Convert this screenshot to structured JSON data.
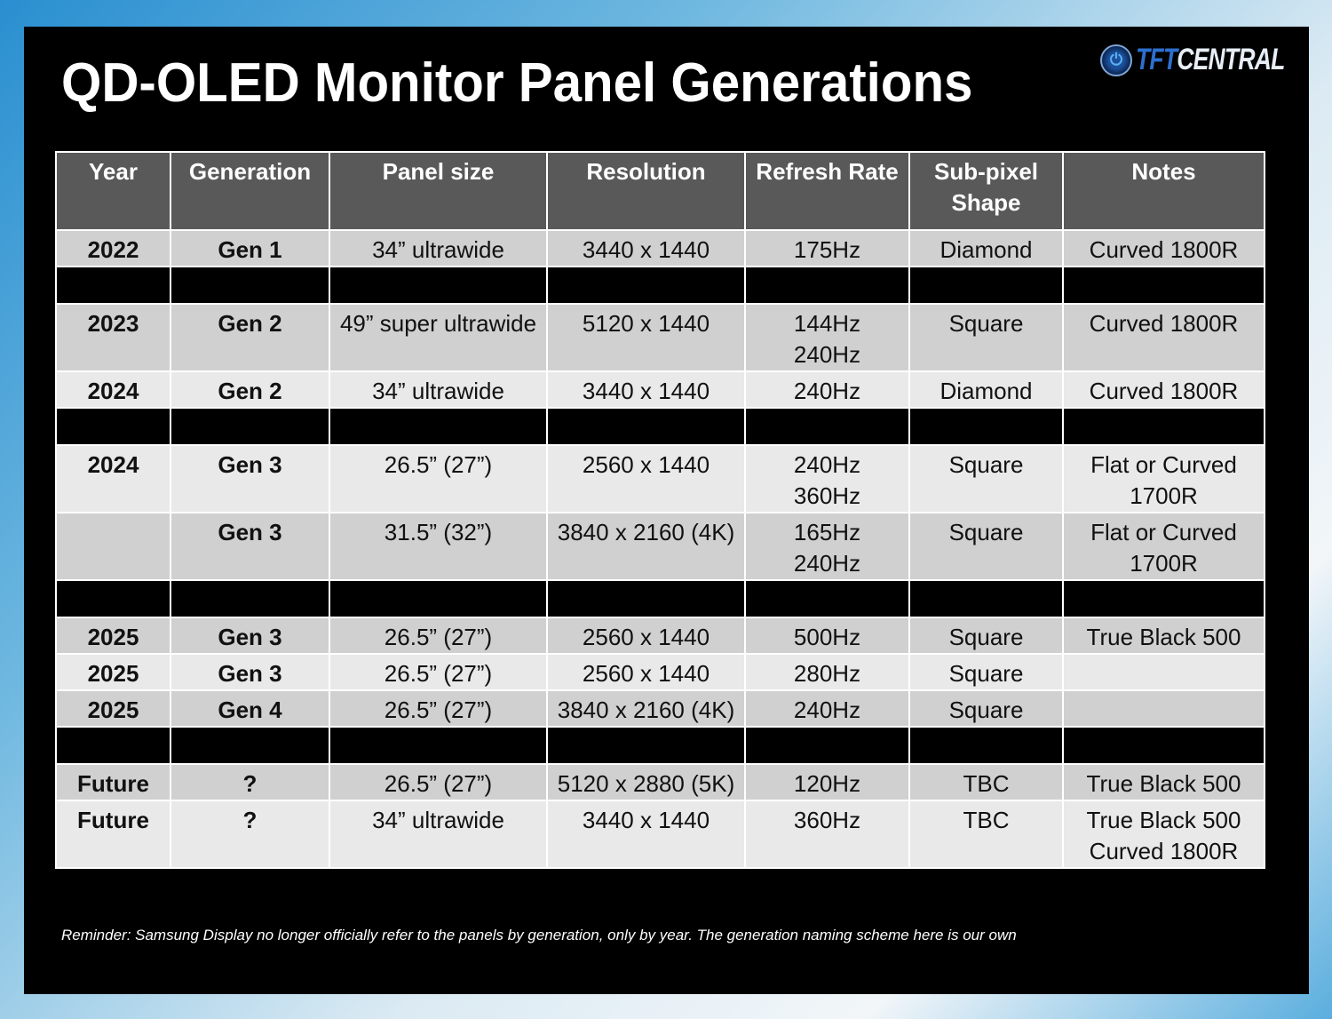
{
  "title": "QD-OLED Monitor Panel Generations",
  "logo": {
    "text_part1": "TFT",
    "text_part2": "CENTRAL",
    "icon": "power-icon"
  },
  "table": {
    "headers": [
      "Year",
      "Generation",
      "Panel size",
      "Resolution",
      "Refresh Rate",
      "Sub-pixel\nShape",
      "Notes"
    ],
    "rows": [
      {
        "type": "dark",
        "cells": [
          "2022",
          "Gen 1",
          "34” ultrawide",
          "3440 x 1440",
          "175Hz",
          "Diamond",
          "Curved 1800R"
        ]
      },
      {
        "type": "spacer"
      },
      {
        "type": "dark",
        "cells": [
          "2023",
          "Gen 2",
          "49” super ultrawide",
          "5120 x 1440",
          "144Hz\n240Hz",
          "Square",
          "Curved 1800R"
        ]
      },
      {
        "type": "light",
        "cells": [
          "2024",
          "Gen 2",
          "34” ultrawide",
          "3440 x 1440",
          "240Hz",
          "Diamond",
          "Curved 1800R"
        ]
      },
      {
        "type": "spacer"
      },
      {
        "type": "light",
        "cells": [
          "2024",
          "Gen 3",
          "26.5” (27”)",
          "2560 x 1440",
          "240Hz\n360Hz",
          "Square",
          "Flat or Curved\n1700R"
        ]
      },
      {
        "type": "dark",
        "cells": [
          "",
          "Gen 3",
          "31.5” (32”)",
          "3840 x 2160 (4K)",
          "165Hz\n240Hz",
          "Square",
          "Flat or Curved\n1700R"
        ]
      },
      {
        "type": "spacer"
      },
      {
        "type": "dark",
        "cells": [
          "2025",
          "Gen 3",
          "26.5” (27”)",
          "2560 x 1440",
          "500Hz",
          "Square",
          "True Black 500"
        ]
      },
      {
        "type": "light",
        "cells": [
          "2025",
          "Gen 3",
          "26.5” (27”)",
          "2560 x 1440",
          "280Hz",
          "Square",
          ""
        ]
      },
      {
        "type": "dark",
        "cells": [
          "2025",
          "Gen 4",
          "26.5” (27”)",
          "3840 x 2160 (4K)",
          "240Hz",
          "Square",
          ""
        ]
      },
      {
        "type": "spacer"
      },
      {
        "type": "dark",
        "cells": [
          "Future",
          "?",
          "26.5” (27”)",
          "5120 x 2880 (5K)",
          "120Hz",
          "TBC",
          "True Black 500"
        ]
      },
      {
        "type": "light",
        "cells": [
          "Future",
          "?",
          "34” ultrawide",
          "3440 x 1440",
          "360Hz",
          "TBC",
          "True Black 500\nCurved 1800R"
        ]
      }
    ]
  },
  "footnote": "Reminder: Samsung Display no longer officially refer to the panels by generation, only by year. The generation naming scheme here is our own",
  "colors": {
    "header_bg": "#595959",
    "row_dark": "#d0d0d0",
    "row_light": "#e9e9e9",
    "spacer": "#000000"
  }
}
